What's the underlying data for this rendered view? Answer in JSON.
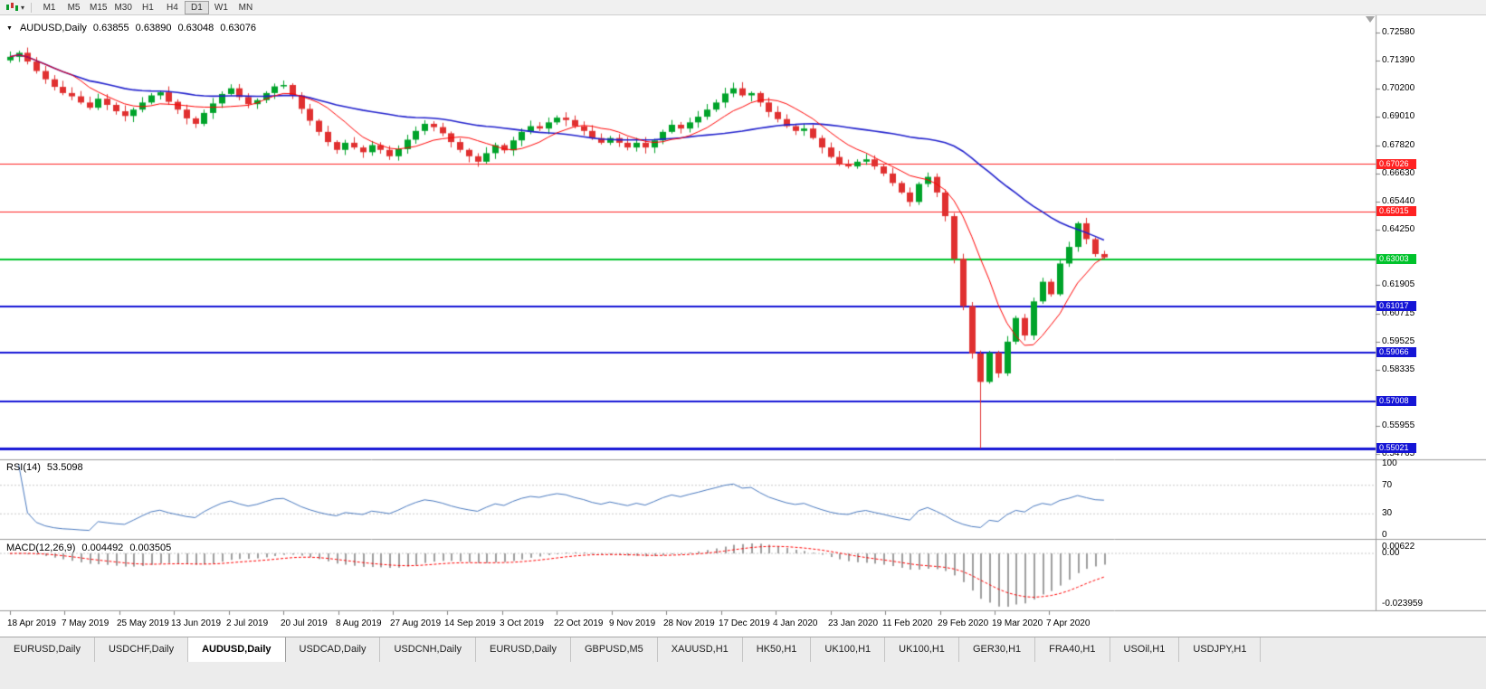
{
  "toolbar": {
    "timeframes": [
      "M1",
      "M5",
      "M15",
      "M30",
      "H1",
      "H4",
      "D1",
      "W1",
      "MN"
    ],
    "active_timeframe": "D1"
  },
  "header": {
    "symbol": "AUDUSD,Daily",
    "open": "0.63855",
    "high": "0.63890",
    "low": "0.63048",
    "close": "0.63076"
  },
  "chart_data": {
    "type": "candlestick",
    "symbol": "AUDUSD",
    "timeframe": "Daily",
    "price_range": {
      "min": 0.5455,
      "max": 0.733
    },
    "y_axis_ticks": [
      "0.72580",
      "0.71390",
      "0.70200",
      "0.69010",
      "0.67820",
      "0.66630",
      "0.65440",
      "0.64250",
      "0.61905",
      "0.60715",
      "0.59525",
      "0.58335",
      "0.55955",
      "0.54765"
    ],
    "x_labels": [
      "18 Apr 2019",
      "7 May 2019",
      "25 May 2019",
      "13 Jun 2019",
      "2 Jul 2019",
      "20 Jul 2019",
      "8 Aug 2019",
      "27 Aug 2019",
      "14 Sep 2019",
      "3 Oct 2019",
      "22 Oct 2019",
      "9 Nov 2019",
      "28 Nov 2019",
      "17 Dec 2019",
      "4 Jan 2020",
      "23 Jan 2020",
      "11 Feb 2020",
      "29 Feb 2020",
      "19 Mar 2020",
      "7 Apr 2020"
    ],
    "candles_per_label": 6.2,
    "first_open": 0.714,
    "closes": [
      0.7155,
      0.7172,
      0.7135,
      0.7095,
      0.706,
      0.7028,
      0.7002,
      0.6988,
      0.6962,
      0.694,
      0.6978,
      0.6952,
      0.6925,
      0.6905,
      0.6932,
      0.6962,
      0.6992,
      0.7005,
      0.6965,
      0.6932,
      0.6895,
      0.6872,
      0.6918,
      0.6958,
      0.6998,
      0.7022,
      0.6985,
      0.6955,
      0.6972,
      0.7002,
      0.703,
      0.7036,
      0.6992,
      0.6935,
      0.6885,
      0.6838,
      0.6795,
      0.6762,
      0.6792,
      0.6772,
      0.6752,
      0.6782,
      0.6762,
      0.6735,
      0.6765,
      0.6805,
      0.6842,
      0.6872,
      0.6858,
      0.6832,
      0.6795,
      0.6762,
      0.6735,
      0.6712,
      0.6748,
      0.6782,
      0.676,
      0.6802,
      0.6838,
      0.6862,
      0.6852,
      0.6878,
      0.6898,
      0.6888,
      0.6862,
      0.6842,
      0.6812,
      0.6792,
      0.6812,
      0.6792,
      0.6772,
      0.6792,
      0.6772,
      0.6802,
      0.6838,
      0.6868,
      0.6852,
      0.6878,
      0.6902,
      0.6932,
      0.6962,
      0.7,
      0.7022,
      0.6992,
      0.7002,
      0.6962,
      0.6922,
      0.6892,
      0.6862,
      0.6842,
      0.6852,
      0.6812,
      0.6772,
      0.6732,
      0.6702,
      0.6692,
      0.6712,
      0.6722,
      0.6692,
      0.6662,
      0.6622,
      0.6582,
      0.6542,
      0.6618,
      0.6648,
      0.6582,
      0.6482,
      0.6302,
      0.6102,
      0.5902,
      0.5782,
      0.5905,
      0.5818,
      0.5952,
      0.6052,
      0.5978,
      0.6122,
      0.6205,
      0.6152,
      0.6282,
      0.6352,
      0.6452,
      0.6385,
      0.6322,
      0.6308
    ],
    "wick": 0.0026,
    "special_lows": {
      "110": 0.5502
    },
    "up_color": "#00a32a",
    "down_color": "#e03030",
    "ma_fast": {
      "period": 8,
      "color": "#ff0000"
    },
    "ma_slow": {
      "period": 34,
      "color": "#2020cc"
    },
    "horizontal_lines": [
      {
        "price": 0.67026,
        "label": "0.67026",
        "color": "#ff2222",
        "width": 1
      },
      {
        "price": 0.65015,
        "label": "0.65015",
        "color": "#ff2222",
        "width": 1
      },
      {
        "price": 0.63003,
        "label": "0.63003",
        "color": "#00c32b",
        "width": 2
      },
      {
        "price": 0.61017,
        "label": "0.61017",
        "color": "#1515d6",
        "width": 2
      },
      {
        "price": 0.59066,
        "label": "0.59066",
        "color": "#1515d6",
        "width": 2
      },
      {
        "price": 0.57008,
        "label": "0.57008",
        "color": "#1515d6",
        "width": 2
      },
      {
        "price": 0.55021,
        "label": "0.55021",
        "color": "#1515d6",
        "width": 3
      }
    ],
    "indicators": {
      "rsi": {
        "label": "RSI(14)",
        "value": "53.5098",
        "period": 14,
        "color": "#4878be",
        "levels": [
          "100",
          "70",
          "30",
          "0"
        ],
        "level_lines": [
          70,
          30
        ]
      },
      "macd": {
        "label": "MACD(12,26,9)",
        "value_main": "0.004492",
        "value_signal": "0.003505",
        "fast": 12,
        "slow": 26,
        "signal": 9,
        "axis_max": "0.00622",
        "axis_zero": "0.00",
        "axis_min": "-0.023959",
        "histogram_color": "#9e9e9e",
        "signal_color": "#ff0000"
      }
    }
  },
  "tabs": {
    "items": [
      "EURUSD,Daily",
      "USDCHF,Daily",
      "AUDUSD,Daily",
      "USDCAD,Daily",
      "USDCNH,Daily",
      "EURUSD,Daily",
      "GBPUSD,M5",
      "XAUUSD,H1",
      "HK50,H1",
      "UK100,H1",
      "UK100,H1",
      "GER30,H1",
      "FRA40,H1",
      "USOil,H1",
      "USDJPY,H1"
    ],
    "active_index": 2
  }
}
